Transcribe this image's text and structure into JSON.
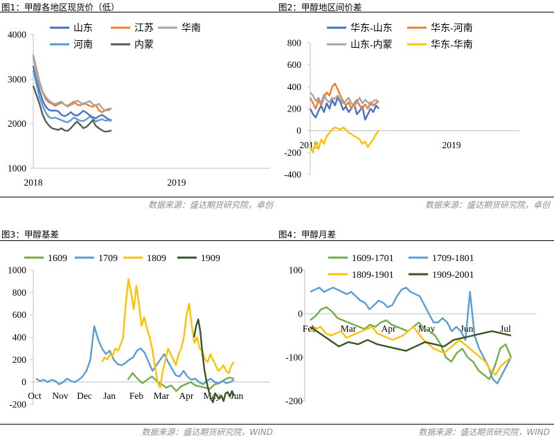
{
  "panels": [
    {
      "title": "图1：甲醇各地区现货价（低）",
      "source": "数据来源：盛达期货研究院，卓创",
      "chart_data": {
        "type": "line",
        "ylim": [
          1000,
          4000
        ],
        "yticks": [
          1000,
          2000,
          3000,
          4000
        ],
        "x_labels": [
          "2018",
          "2019"
        ],
        "series": [
          {
            "name": "山东",
            "color": "#4472C4",
            "values": [
              3300,
              3000,
              2750,
              2520,
              2380,
              2310,
              2290,
              2300,
              2280,
              2200,
              2170,
              2200,
              2260,
              2200,
              2180,
              2230,
              2290,
              2250,
              2190,
              2150,
              2120,
              2170,
              2200,
              2150,
              2100,
              2080
            ]
          },
          {
            "name": "江苏",
            "color": "#ED7D31",
            "values": [
              3500,
              3200,
              2900,
              2700,
              2550,
              2480,
              2450,
              2400,
              2440,
              2470,
              2430,
              2400,
              2450,
              2500,
              2430,
              2410,
              2460,
              2440,
              2400,
              2380,
              2420,
              2300,
              2260,
              2300,
              2330,
              2340
            ]
          },
          {
            "name": "华南",
            "color": "#A5A5A5",
            "values": [
              3550,
              3250,
              2950,
              2720,
              2600,
              2520,
              2470,
              2440,
              2470,
              2500,
              2430,
              2380,
              2420,
              2450,
              2520,
              2480,
              2430,
              2480,
              2510,
              2440,
              2400,
              2450,
              2350,
              2300,
              2300,
              2350
            ]
          },
          {
            "name": "河南",
            "color": "#5B9BD5",
            "values": [
              3200,
              2900,
              2600,
              2400,
              2250,
              2150,
              2120,
              2140,
              2110,
              2080,
              2050,
              2030,
              2080,
              2140,
              2100,
              2070,
              2060,
              2100,
              2160,
              2120,
              2050,
              2080,
              2100,
              2070,
              2080,
              2060
            ]
          },
          {
            "name": "内蒙",
            "color": "#595959",
            "values": [
              2850,
              2650,
              2450,
              2200,
              2050,
              1960,
              1900,
              1880,
              1860,
              1900,
              1850,
              1840,
              1900,
              1980,
              2050,
              1980,
              1900,
              1930,
              2000,
              2080,
              1950,
              1900,
              1850,
              1820,
              1830,
              1850
            ]
          }
        ]
      }
    },
    {
      "title": "图2：甲醇地区间价差",
      "source": "数据来源：盛达期货研究院，卓创",
      "chart_data": {
        "type": "line",
        "ylim": [
          -400,
          800
        ],
        "yticks": [
          -400,
          -200,
          0,
          200,
          400,
          600,
          800
        ],
        "x_labels": [
          "2018",
          "2019"
        ],
        "series": [
          {
            "name": "华东-山东",
            "color": "#4472C4",
            "values": [
              200,
              150,
              120,
              180,
              230,
              170,
              250,
              200,
              280,
              230,
              300,
              260,
              190,
              220,
              170,
              200,
              250,
              150,
              180,
              220,
              100,
              150,
              200,
              170,
              230,
              200
            ]
          },
          {
            "name": "华东-河南",
            "color": "#ED7D31",
            "values": [
              300,
              250,
              200,
              280,
              230,
              300,
              350,
              320,
              400,
              430,
              380,
              320,
              270,
              230,
              260,
              200,
              250,
              280,
              230,
              200,
              240,
              200,
              260,
              230,
              250,
              270
            ]
          },
          {
            "name": "山东-内蒙",
            "color": "#A5A5A5",
            "values": [
              350,
              320,
              270,
              300,
              250,
              330,
              280,
              260,
              300,
              290,
              320,
              280,
              250,
              270,
              300,
              250,
              220,
              260,
              300,
              250,
              280,
              260,
              230,
              270,
              280,
              260
            ]
          },
          {
            "name": "华东-华南",
            "color": "#FFC000",
            "values": [
              -150,
              -200,
              -100,
              -170,
              -80,
              -120,
              -50,
              -20,
              10,
              30,
              20,
              10,
              30,
              10,
              -20,
              -30,
              -50,
              -60,
              -80,
              -120,
              -100,
              -150,
              -110,
              -80,
              -30,
              0
            ]
          }
        ]
      }
    },
    {
      "title": "图3：甲醇基差",
      "source": "数据来源：盛达期货研究院，WIND",
      "chart_data": {
        "type": "line",
        "ylim": [
          -200,
          1000
        ],
        "yticks": [
          -200,
          0,
          200,
          400,
          600,
          800,
          1000
        ],
        "x_labels": [
          "Oct",
          "Nov",
          "Dec",
          "Jan",
          "Feb",
          "Mar",
          "Apr",
          "May",
          "Jun"
        ],
        "series": [
          {
            "name": "1609",
            "color": "#70AD47",
            "values": [
              null,
              null,
              null,
              null,
              null,
              null,
              null,
              null,
              null,
              null,
              null,
              null,
              null,
              null,
              null,
              null,
              null,
              null,
              null,
              20,
              80,
              30,
              -10,
              20,
              50,
              10,
              -20,
              -50,
              -30,
              -80,
              -40,
              -20,
              0,
              -30,
              -40,
              -50,
              -60,
              -20,
              -10,
              20,
              40,
              30
            ]
          },
          {
            "name": "1709",
            "color": "#5B9BD5",
            "values": [
              30,
              10,
              20,
              0,
              20,
              10,
              -20,
              0,
              30,
              10,
              0,
              20,
              50,
              100,
              200,
              500,
              380,
              300,
              250,
              280,
              200,
              160,
              150,
              170,
              200,
              220,
              280,
              300,
              260,
              180,
              100,
              150,
              200,
              250,
              180,
              120,
              60,
              50,
              100,
              50,
              20,
              30,
              0,
              -20,
              10,
              30,
              0,
              -10,
              10,
              -10,
              0,
              20
            ]
          },
          {
            "name": "1809",
            "color": "#FFC000",
            "values": [
              null,
              null,
              null,
              null,
              null,
              null,
              null,
              null,
              null,
              null,
              null,
              null,
              null,
              null,
              null,
              null,
              null,
              null,
              null,
              null,
              null,
              null,
              null,
              null,
              null,
              180,
              220,
              200,
              250,
              230,
              300,
              280,
              330,
              400,
              700,
              920,
              800,
              650,
              860,
              700,
              500,
              580,
              480,
              400,
              300,
              150,
              0,
              -50,
              100,
              200,
              300,
              250,
              200,
              150,
              250,
              300,
              400,
              600,
              700,
              500,
              350,
              400,
              300,
              280,
              200,
              180,
              250,
              200,
              150,
              100,
              120,
              150,
              100,
              80,
              150,
              180
            ]
          },
          {
            "name": "1909",
            "color": "#375623",
            "values": [
              null,
              null,
              null,
              null,
              null,
              null,
              null,
              null,
              null,
              null,
              null,
              null,
              null,
              null,
              null,
              null,
              null,
              null,
              null,
              null,
              null,
              null,
              null,
              null,
              null,
              null,
              null,
              null,
              null,
              null,
              null,
              null,
              null,
              null,
              null,
              null,
              null,
              null,
              null,
              null,
              null,
              null,
              null,
              null,
              null,
              null,
              null,
              null,
              null,
              null,
              null,
              null,
              null,
              null,
              null,
              null,
              null,
              null,
              null,
              null,
              null,
              null,
              null,
              null,
              null,
              null,
              null,
              null,
              null,
              null,
              null,
              null,
              null,
              null,
              null,
              400,
              500,
              560,
              450,
              250,
              100,
              0,
              -80,
              -150,
              -180,
              -100,
              -130,
              -150,
              -120,
              -170,
              -100,
              -90,
              -130,
              -80,
              -120
            ]
          }
        ]
      }
    },
    {
      "title": "图4：甲醇月差",
      "source": "数据来源：盛达期货研究院，WIND",
      "chart_data": {
        "type": "line",
        "ylim": [
          -200,
          100
        ],
        "yticks": [
          -200,
          -100,
          0,
          100
        ],
        "x_labels": [
          "Feb",
          "Mar",
          "Apr",
          "May",
          "Jun",
          "Jul"
        ],
        "series": [
          {
            "name": "1609-1701",
            "color": "#70AD47",
            "values": [
              -15,
              -5,
              10,
              15,
              5,
              -10,
              -15,
              -20,
              -25,
              -30,
              -35,
              -25,
              -30,
              -20,
              -15,
              -25,
              -30,
              -35,
              -40,
              -30,
              -20,
              -35,
              -40,
              -50,
              -70,
              -100,
              -110,
              -90,
              -80,
              -100,
              -110,
              -130,
              -140,
              -150,
              -120,
              -80,
              -70,
              -100
            ]
          },
          {
            "name": "1709-1801",
            "color": "#5B9BD5",
            "values": [
              50,
              55,
              60,
              50,
              55,
              60,
              55,
              50,
              45,
              50,
              40,
              30,
              25,
              10,
              20,
              30,
              25,
              15,
              20,
              40,
              55,
              60,
              50,
              45,
              40,
              20,
              0,
              -20,
              -20,
              -10,
              -20,
              -40,
              -30,
              -40,
              -60,
              50,
              -50,
              -80,
              -100,
              -120,
              -150,
              -160,
              -140,
              -120,
              -100
            ]
          },
          {
            "name": "1809-1901",
            "color": "#FFC000",
            "values": [
              -40,
              -35,
              -30,
              -45,
              -50,
              -45,
              -40,
              -55,
              -50,
              -45,
              -40,
              -35,
              -30,
              -45,
              -50,
              -55,
              -60,
              -55,
              -50,
              -40,
              -30,
              -45,
              -60,
              -70,
              -80,
              -85,
              -90,
              -80,
              -70,
              -60,
              -70,
              -80,
              -90,
              -100,
              -110,
              -130,
              -140,
              -120,
              -110,
              -100
            ]
          },
          {
            "name": "1909-2001",
            "color": "#375623",
            "values": [
              -30,
              -45,
              -60,
              -75,
              -65,
              -70,
              -60,
              -70,
              -75,
              -80,
              -85,
              -75,
              -65,
              -70,
              -75,
              -60,
              -55,
              -50,
              -45,
              -40,
              -45,
              -50
            ]
          }
        ]
      }
    }
  ]
}
